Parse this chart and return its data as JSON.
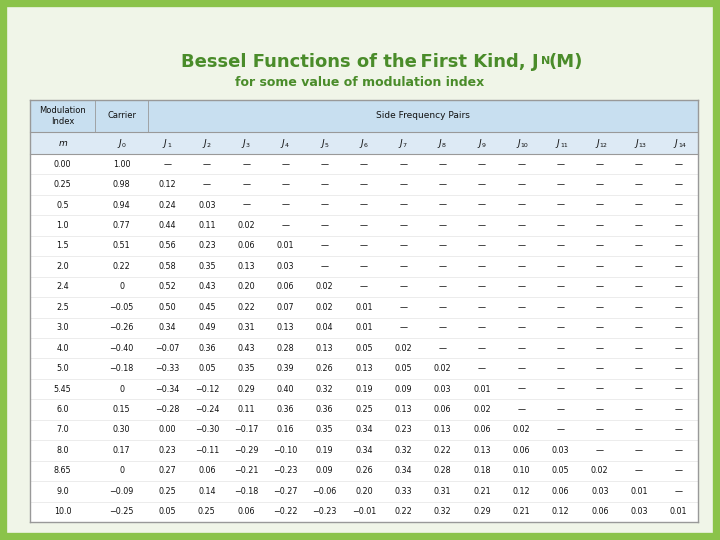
{
  "title_color": "#4a8c2a",
  "bg_color": "#f0f5e8",
  "border_color": "#8bc34a",
  "table_header_bg": "#c8dff0",
  "col_label_bg": "#ddeaf5",
  "rows": [
    [
      "0.00",
      "1.00",
      "—",
      "—",
      "—",
      "—",
      "—",
      "—",
      "—",
      "—",
      "—",
      "—",
      "—",
      "—",
      "—",
      "—"
    ],
    [
      "0.25",
      "0.98",
      "0.12",
      "—",
      "—",
      "—",
      "—",
      "—",
      "—",
      "—",
      "—",
      "—",
      "—",
      "—",
      "—",
      "—"
    ],
    [
      "0.5",
      "0.94",
      "0.24",
      "0.03",
      "—",
      "—",
      "—",
      "—",
      "—",
      "—",
      "—",
      "—",
      "—",
      "—",
      "—",
      "—"
    ],
    [
      "1.0",
      "0.77",
      "0.44",
      "0.11",
      "0.02",
      "—",
      "—",
      "—",
      "—",
      "—",
      "—",
      "—",
      "—",
      "—",
      "—",
      "—"
    ],
    [
      "1.5",
      "0.51",
      "0.56",
      "0.23",
      "0.06",
      "0.01",
      "—",
      "—",
      "—",
      "—",
      "—",
      "—",
      "—",
      "—",
      "—",
      "—"
    ],
    [
      "2.0",
      "0.22",
      "0.58",
      "0.35",
      "0.13",
      "0.03",
      "—",
      "—",
      "—",
      "—",
      "—",
      "—",
      "—",
      "—",
      "—",
      "—"
    ],
    [
      "2.4",
      "0",
      "0.52",
      "0.43",
      "0.20",
      "0.06",
      "0.02",
      "—",
      "—",
      "—",
      "—",
      "—",
      "—",
      "—",
      "—",
      "—"
    ],
    [
      "2.5",
      "−0.05",
      "0.50",
      "0.45",
      "0.22",
      "0.07",
      "0.02",
      "0.01",
      "—",
      "—",
      "—",
      "—",
      "—",
      "—",
      "—",
      "—"
    ],
    [
      "3.0",
      "−0.26",
      "0.34",
      "0.49",
      "0.31",
      "0.13",
      "0.04",
      "0.01",
      "—",
      "—",
      "—",
      "—",
      "—",
      "—",
      "—",
      "—"
    ],
    [
      "4.0",
      "−0.40",
      "−0.07",
      "0.36",
      "0.43",
      "0.28",
      "0.13",
      "0.05",
      "0.02",
      "—",
      "—",
      "—",
      "—",
      "—",
      "—",
      "—"
    ],
    [
      "5.0",
      "−0.18",
      "−0.33",
      "0.05",
      "0.35",
      "0.39",
      "0.26",
      "0.13",
      "0.05",
      "0.02",
      "—",
      "—",
      "—",
      "—",
      "—",
      "—"
    ],
    [
      "5.45",
      "0",
      "−0.34",
      "−0.12",
      "0.29",
      "0.40",
      "0.32",
      "0.19",
      "0.09",
      "0.03",
      "0.01",
      "—",
      "—",
      "—",
      "—",
      "—"
    ],
    [
      "6.0",
      "0.15",
      "−0.28",
      "−0.24",
      "0.11",
      "0.36",
      "0.36",
      "0.25",
      "0.13",
      "0.06",
      "0.02",
      "—",
      "—",
      "—",
      "—",
      "—"
    ],
    [
      "7.0",
      "0.30",
      "0.00",
      "−0.30",
      "−0.17",
      "0.16",
      "0.35",
      "0.34",
      "0.23",
      "0.13",
      "0.06",
      "0.02",
      "—",
      "—",
      "—",
      "—"
    ],
    [
      "8.0",
      "0.17",
      "0.23",
      "−0.11",
      "−0.29",
      "−0.10",
      "0.19",
      "0.34",
      "0.32",
      "0.22",
      "0.13",
      "0.06",
      "0.03",
      "—",
      "—",
      "—"
    ],
    [
      "8.65",
      "0",
      "0.27",
      "0.06",
      "−0.21",
      "−0.23",
      "0.09",
      "0.26",
      "0.34",
      "0.28",
      "0.18",
      "0.10",
      "0.05",
      "0.02",
      "—",
      "—"
    ],
    [
      "9.0",
      "−0.09",
      "0.25",
      "0.14",
      "−0.18",
      "−0.27",
      "−0.06",
      "0.20",
      "0.33",
      "0.31",
      "0.21",
      "0.12",
      "0.06",
      "0.03",
      "0.01",
      "—"
    ],
    [
      "10.0",
      "−0.25",
      "0.05",
      "0.25",
      "0.06",
      "−0.22",
      "−0.23",
      "−0.01",
      "0.22",
      "0.32",
      "0.29",
      "0.21",
      "0.12",
      "0.06",
      "0.03",
      "0.01"
    ]
  ],
  "col_subscripts": [
    "0",
    "1",
    "2",
    "3",
    "4",
    "5",
    "6",
    "7",
    "8",
    "9",
    "10",
    "11",
    "12",
    "13",
    "14"
  ]
}
